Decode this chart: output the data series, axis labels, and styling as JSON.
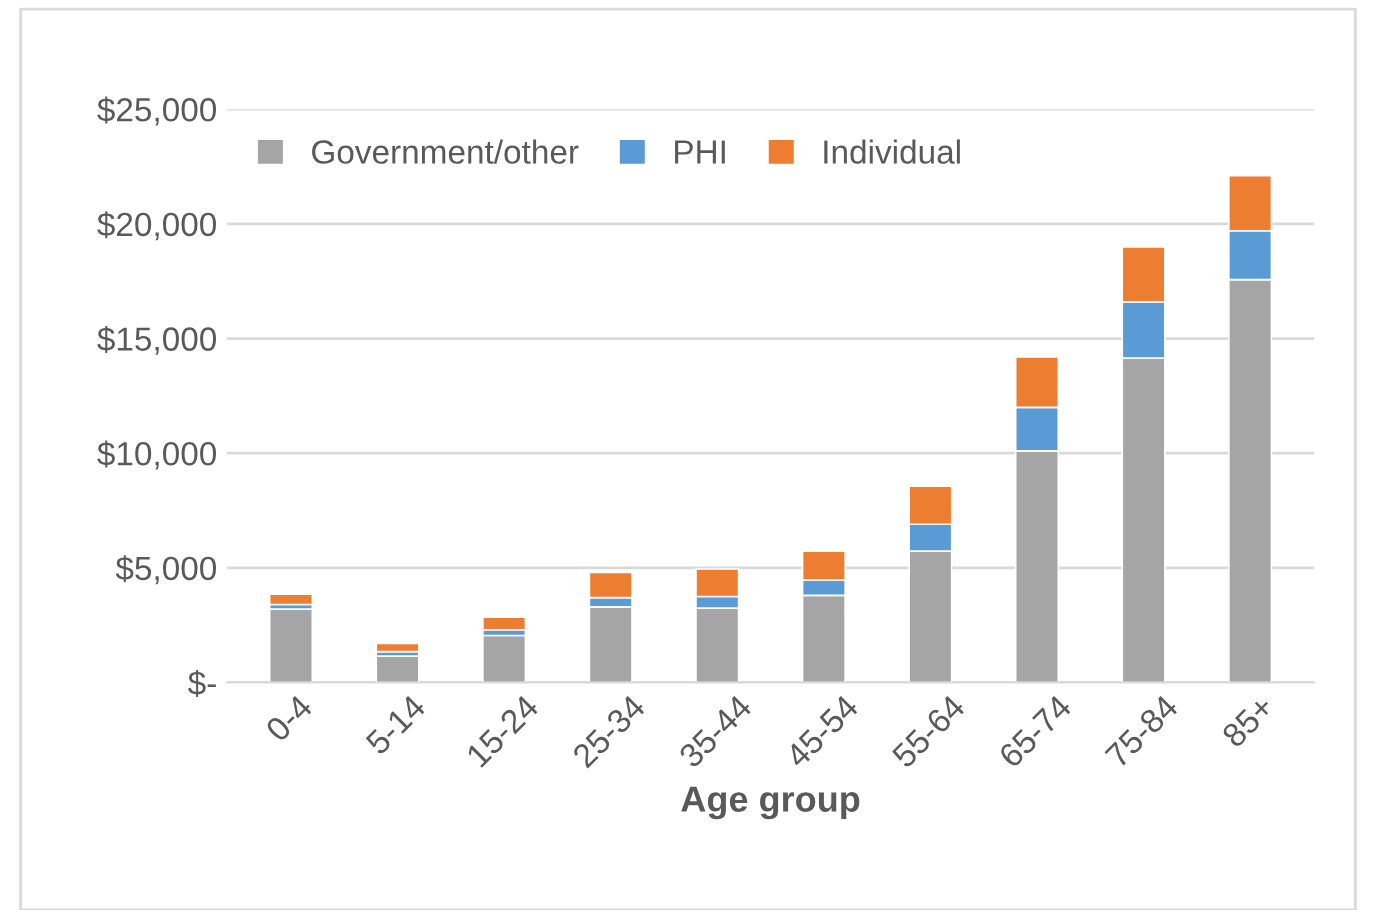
{
  "chart_data": {
    "type": "bar",
    "stacked": true,
    "xlabel": "Age group",
    "categories": [
      "0-4",
      "5-14",
      "15-24",
      "25-34",
      "35-44",
      "45-54",
      "55-64",
      "65-74",
      "75-84",
      "85+"
    ],
    "series": [
      {
        "name": "Government/other",
        "color": "#a5a5a5",
        "values": [
          3200,
          1150,
          2050,
          3300,
          3250,
          3800,
          5730,
          10100,
          14150,
          17570
        ]
      },
      {
        "name": "PHI",
        "color": "#5b9bd5",
        "values": [
          200,
          200,
          250,
          400,
          500,
          670,
          1170,
          1900,
          2450,
          2130
        ]
      },
      {
        "name": "Individual",
        "color": "#ed7d31",
        "values": [
          450,
          350,
          550,
          1100,
          1200,
          1260,
          1660,
          2200,
          2400,
          2400
        ]
      }
    ],
    "ylim": [
      0,
      25000
    ],
    "yticks": [
      {
        "value": 0,
        "label": "$-"
      },
      {
        "value": 5000,
        "label": "$5,000"
      },
      {
        "value": 10000,
        "label": "$10,000"
      },
      {
        "value": 15000,
        "label": "$15,000"
      },
      {
        "value": 20000,
        "label": "$20,000"
      },
      {
        "value": 25000,
        "label": "$25,000"
      }
    ],
    "grid": "y",
    "legend": "top left"
  }
}
